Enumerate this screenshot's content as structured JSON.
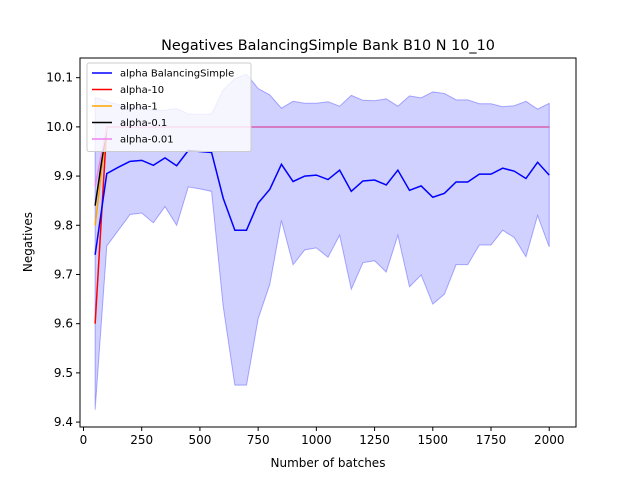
{
  "chart_data": {
    "type": "line",
    "title": "Negatives BalancingSimple Bank B10 N 10_10",
    "xlabel": "Number of batches",
    "ylabel": "Negatives",
    "xlim": [
      -15,
      2115
    ],
    "ylim": [
      9.39,
      10.14
    ],
    "xticks": [
      0,
      250,
      500,
      750,
      1000,
      1250,
      1500,
      1750,
      2000
    ],
    "yticks": [
      9.4,
      9.5,
      9.6,
      9.7,
      9.8,
      9.9,
      10.0,
      10.1
    ],
    "legend_position": "top-left",
    "grid": false,
    "series": [
      {
        "name": "alpha BalancingSimple",
        "color": "#0000ff",
        "x": [
          50,
          100,
          150,
          200,
          250,
          300,
          350,
          400,
          450,
          500,
          550,
          600,
          650,
          700,
          750,
          800,
          850,
          900,
          950,
          1000,
          1050,
          1100,
          1150,
          1200,
          1250,
          1300,
          1350,
          1400,
          1450,
          1500,
          1550,
          1600,
          1650,
          1700,
          1750,
          1800,
          1850,
          1900,
          1950,
          2000
        ],
        "values": [
          9.74,
          9.905,
          9.918,
          9.93,
          9.932,
          9.922,
          9.937,
          9.921,
          9.952,
          9.95,
          9.948,
          9.855,
          9.79,
          9.79,
          9.845,
          9.873,
          9.924,
          9.889,
          9.9,
          9.902,
          9.893,
          9.912,
          9.869,
          9.89,
          9.892,
          9.882,
          9.912,
          9.871,
          9.88,
          9.857,
          9.865,
          9.888,
          9.888,
          9.904,
          9.904,
          9.916,
          9.91,
          9.895,
          9.928,
          9.902
        ],
        "upper": [
          10.06,
          10.052,
          10.045,
          10.04,
          10.04,
          10.033,
          10.034,
          10.037,
          10.026,
          10.026,
          10.026,
          10.075,
          10.098,
          10.107,
          10.078,
          10.065,
          10.038,
          10.052,
          10.048,
          10.048,
          10.051,
          10.042,
          10.064,
          10.054,
          10.053,
          10.057,
          10.042,
          10.063,
          10.059,
          10.071,
          10.068,
          10.055,
          10.055,
          10.047,
          10.047,
          10.041,
          10.043,
          10.052,
          10.036,
          10.048
        ],
        "lower": [
          9.425,
          9.758,
          9.79,
          9.822,
          9.825,
          9.805,
          9.838,
          9.8,
          9.878,
          9.874,
          9.869,
          9.635,
          9.475,
          9.475,
          9.61,
          9.68,
          9.81,
          9.72,
          9.75,
          9.754,
          9.735,
          9.78,
          9.67,
          9.724,
          9.728,
          9.705,
          9.78,
          9.675,
          9.699,
          9.64,
          9.66,
          9.72,
          9.72,
          9.76,
          9.76,
          9.79,
          9.775,
          9.736,
          9.82,
          9.756
        ]
      },
      {
        "name": "alpha-10",
        "color": "#ff0000",
        "x": [
          50,
          100,
          2000
        ],
        "values": [
          9.6,
          10.0,
          10.0
        ]
      },
      {
        "name": "alpha-1",
        "color": "#ffa500",
        "x": [
          50,
          100,
          2000
        ],
        "values": [
          9.8,
          10.0,
          10.0
        ]
      },
      {
        "name": "alpha-0.1",
        "color": "#000000",
        "x": [
          50,
          100,
          2000
        ],
        "values": [
          9.84,
          10.0,
          10.0
        ]
      },
      {
        "name": "alpha-0.01",
        "color": "#ee82ee",
        "x": [
          50,
          100,
          2000
        ],
        "values": [
          9.88,
          10.0,
          10.0
        ]
      }
    ]
  }
}
